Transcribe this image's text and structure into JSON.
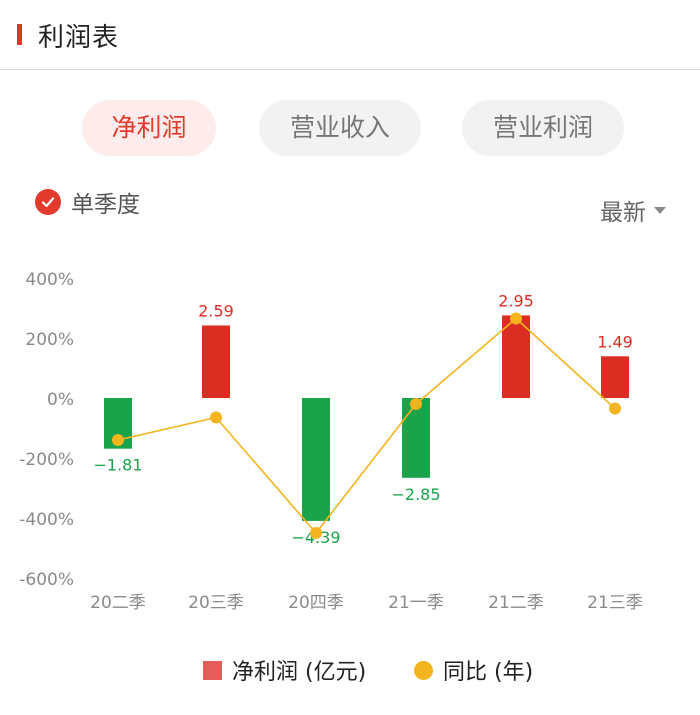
{
  "header": {
    "title": "利润表"
  },
  "tabs": [
    {
      "label": "净利润",
      "active": true
    },
    {
      "label": "营业收入",
      "active": false
    },
    {
      "label": "营业利润",
      "active": false
    }
  ],
  "filter": {
    "label": "单季度",
    "checked": true
  },
  "sort": {
    "label": "最新"
  },
  "colors": {
    "accent": "#e23b2e",
    "positive": "#dc2d22",
    "negative": "#1aa34a",
    "line": "#f3b41e"
  },
  "chart_data": {
    "type": "bar",
    "categories": [
      "20二季",
      "20三季",
      "20四季",
      "21一季",
      "21二季",
      "21三季"
    ],
    "series": [
      {
        "name": "净利润 (亿元)",
        "type": "bar",
        "values": [
          -1.81,
          2.59,
          -4.39,
          -2.85,
          2.95,
          1.49
        ]
      },
      {
        "name": "同比 (年)",
        "type": "line",
        "values": [
          -140,
          -65,
          -450,
          -20,
          265,
          -35
        ]
      }
    ],
    "y_tick_labels": [
      "400%",
      "200%",
      "0%",
      "-200%",
      "-400%",
      "-600%"
    ],
    "ylim": [
      -600,
      400
    ],
    "grid": false,
    "legend": "bottom"
  },
  "legend": {
    "bar_label": "净利润 (亿元)",
    "line_label": "同比 (年)"
  }
}
